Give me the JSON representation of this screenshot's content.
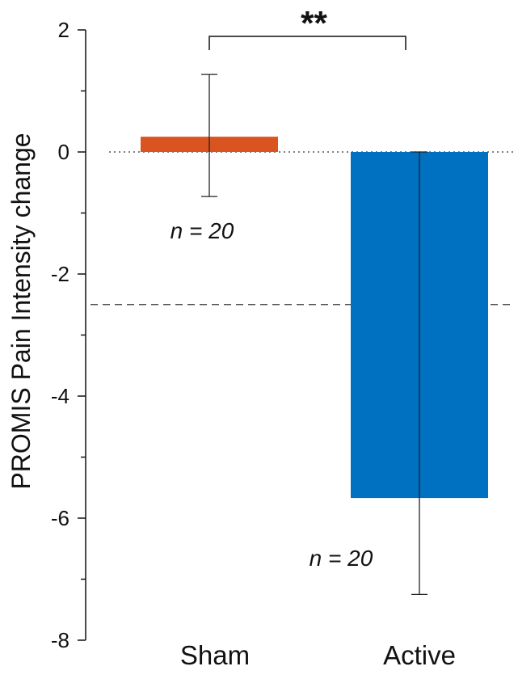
{
  "chart_data": {
    "type": "bar",
    "ylabel": "PROMIS Pain Intensity change",
    "ylim": [
      -8,
      2
    ],
    "yticks": [
      2,
      0,
      -2,
      -4,
      -6,
      -8
    ],
    "yticks_labels": [
      "2",
      "0",
      "-2",
      "-4",
      "-6",
      "-8"
    ],
    "categories": [
      "Sham",
      "Active"
    ],
    "values": [
      0.25,
      -5.67
    ],
    "error_upper": [
      1.27,
      0
    ],
    "error_lower": [
      -0.73,
      -7.25
    ],
    "colors": [
      "#d9541e",
      "#0070c0"
    ],
    "n_labels": [
      "n = 20",
      "n = 20"
    ],
    "significance": "**",
    "reference_lines": [
      {
        "y": 0,
        "style": "dotted"
      },
      {
        "y": -2.5,
        "style": "dashed"
      }
    ],
    "grid": false
  }
}
